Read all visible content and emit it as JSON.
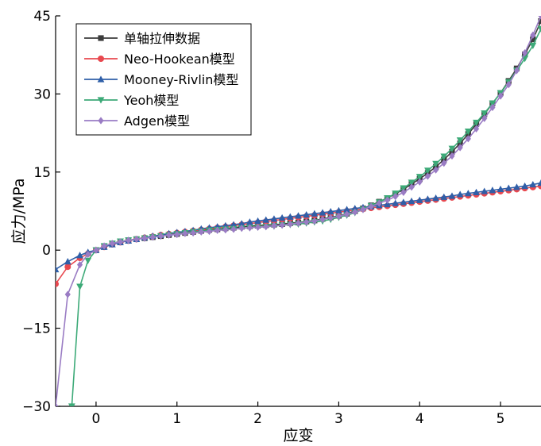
{
  "chart_data": {
    "type": "line",
    "xlabel": "应变",
    "ylabel": "应力/MPa",
    "xlim": [
      -0.5,
      5.5
    ],
    "ylim": [
      -30,
      45
    ],
    "xticks": [
      0,
      1,
      2,
      3,
      4,
      5
    ],
    "yticks": [
      -30,
      -15,
      0,
      15,
      30,
      45
    ],
    "ytick_labels": [
      "−30",
      "−15",
      "0",
      "15",
      "30",
      "45"
    ],
    "grid": false,
    "legend_position": "top-left",
    "series": [
      {
        "name": "单轴拉伸数据",
        "color": "#3c3c3c",
        "marker": "square",
        "x": [
          0,
          0.1,
          0.2,
          0.3,
          0.4,
          0.5,
          0.6,
          0.7,
          0.8,
          0.9,
          1.0,
          1.1,
          1.2,
          1.3,
          1.4,
          1.5,
          1.6,
          1.7,
          1.8,
          1.9,
          2.0,
          2.1,
          2.2,
          2.3,
          2.4,
          2.5,
          2.6,
          2.7,
          2.8,
          2.9,
          3.0,
          3.1,
          3.2,
          3.3,
          3.4,
          3.5,
          3.6,
          3.7,
          3.8,
          3.9,
          4.0,
          4.1,
          4.2,
          4.3,
          4.4,
          4.5,
          4.6,
          4.7,
          4.8,
          4.9,
          5.0,
          5.1,
          5.2,
          5.3,
          5.4,
          5.5
        ],
        "y": [
          0,
          0.7,
          1.2,
          1.6,
          1.9,
          2.1,
          2.3,
          2.5,
          2.7,
          2.9,
          3.1,
          3.3,
          3.5,
          3.7,
          3.9,
          4.0,
          4.2,
          4.3,
          4.5,
          4.6,
          4.7,
          4.8,
          4.9,
          5.0,
          5.2,
          5.3,
          5.5,
          5.7,
          6.0,
          6.3,
          6.6,
          7.0,
          7.5,
          8.0,
          8.6,
          9.3,
          10.0,
          10.8,
          11.7,
          12.7,
          13.7,
          14.8,
          16.0,
          17.4,
          18.9,
          20.5,
          22.3,
          24.2,
          26.1,
          28.2,
          30.2,
          32.5,
          34.9,
          37.6,
          40.5,
          44.0
        ]
      },
      {
        "name": "Neo-Hookean模型",
        "color": "#e8484f",
        "marker": "circle",
        "x": [
          -0.5,
          -0.35,
          -0.2,
          -0.1,
          0,
          0.1,
          0.2,
          0.3,
          0.4,
          0.5,
          0.6,
          0.7,
          0.8,
          0.9,
          1.0,
          1.1,
          1.2,
          1.3,
          1.4,
          1.5,
          1.6,
          1.7,
          1.8,
          1.9,
          2.0,
          2.1,
          2.2,
          2.3,
          2.4,
          2.5,
          2.6,
          2.7,
          2.8,
          2.9,
          3.0,
          3.1,
          3.2,
          3.3,
          3.4,
          3.5,
          3.6,
          3.7,
          3.8,
          3.9,
          4.0,
          4.1,
          4.2,
          4.3,
          4.4,
          4.5,
          4.6,
          4.7,
          4.8,
          4.9,
          5.0,
          5.1,
          5.2,
          5.3,
          5.4,
          5.5
        ],
        "y": [
          -6.5,
          -3.2,
          -1.5,
          -0.7,
          0,
          0.6,
          1.1,
          1.5,
          1.8,
          2.1,
          2.4,
          2.6,
          2.9,
          3.1,
          3.3,
          3.5,
          3.7,
          3.9,
          4.1,
          4.3,
          4.5,
          4.7,
          4.9,
          5.1,
          5.3,
          5.5,
          5.7,
          5.9,
          6.1,
          6.3,
          6.5,
          6.7,
          6.9,
          7.1,
          7.3,
          7.5,
          7.7,
          7.9,
          8.1,
          8.3,
          8.5,
          8.7,
          8.9,
          9.1,
          9.3,
          9.5,
          9.7,
          9.9,
          10.1,
          10.3,
          10.5,
          10.7,
          10.9,
          11.1,
          11.3,
          11.5,
          11.7,
          11.9,
          12.1,
          12.3
        ]
      },
      {
        "name": "Mooney-Rivlin模型",
        "color": "#2f5fa8",
        "marker": "triangle-up",
        "x": [
          -0.5,
          -0.35,
          -0.2,
          -0.1,
          0,
          0.1,
          0.2,
          0.3,
          0.4,
          0.5,
          0.6,
          0.7,
          0.8,
          0.9,
          1.0,
          1.1,
          1.2,
          1.3,
          1.4,
          1.5,
          1.6,
          1.7,
          1.8,
          1.9,
          2.0,
          2.1,
          2.2,
          2.3,
          2.4,
          2.5,
          2.6,
          2.7,
          2.8,
          2.9,
          3.0,
          3.1,
          3.2,
          3.3,
          3.4,
          3.5,
          3.6,
          3.7,
          3.8,
          3.9,
          4.0,
          4.1,
          4.2,
          4.3,
          4.4,
          4.5,
          4.6,
          4.7,
          4.8,
          4.9,
          5.0,
          5.1,
          5.2,
          5.3,
          5.4,
          5.5
        ],
        "y": [
          -3.7,
          -2.2,
          -1.0,
          -0.4,
          0,
          0.6,
          1.1,
          1.5,
          1.8,
          2.1,
          2.4,
          2.7,
          2.9,
          3.2,
          3.4,
          3.6,
          3.8,
          4.1,
          4.3,
          4.5,
          4.7,
          4.9,
          5.1,
          5.4,
          5.6,
          5.8,
          6.0,
          6.2,
          6.4,
          6.6,
          6.8,
          7.0,
          7.2,
          7.4,
          7.6,
          7.8,
          8.0,
          8.2,
          8.4,
          8.6,
          8.8,
          9.0,
          9.2,
          9.4,
          9.6,
          9.8,
          10.0,
          10.2,
          10.4,
          10.7,
          10.9,
          11.1,
          11.3,
          11.5,
          11.7,
          11.9,
          12.1,
          12.3,
          12.6,
          12.9
        ]
      },
      {
        "name": "Yeoh模型",
        "color": "#3daa78",
        "marker": "triangle-down",
        "x": [
          -0.3,
          -0.2,
          -0.1,
          0,
          0.1,
          0.2,
          0.3,
          0.4,
          0.5,
          0.6,
          0.7,
          0.8,
          0.9,
          1.0,
          1.1,
          1.2,
          1.3,
          1.4,
          1.5,
          1.6,
          1.7,
          1.8,
          1.9,
          2.0,
          2.1,
          2.2,
          2.3,
          2.4,
          2.5,
          2.6,
          2.7,
          2.8,
          2.9,
          3.0,
          3.1,
          3.2,
          3.3,
          3.4,
          3.5,
          3.6,
          3.7,
          3.8,
          3.9,
          4.0,
          4.1,
          4.2,
          4.3,
          4.4,
          4.5,
          4.6,
          4.7,
          4.8,
          4.9,
          5.0,
          5.1,
          5.2,
          5.3,
          5.4,
          5.5
        ],
        "y": [
          -30,
          -7.0,
          -2.0,
          0,
          0.8,
          1.3,
          1.7,
          1.9,
          2.1,
          2.3,
          2.5,
          2.7,
          2.9,
          3.1,
          3.3,
          3.5,
          3.6,
          3.8,
          3.9,
          4.0,
          4.1,
          4.2,
          4.3,
          4.4,
          4.5,
          4.6,
          4.8,
          4.9,
          5.0,
          5.2,
          5.4,
          5.6,
          5.9,
          6.3,
          6.7,
          7.2,
          7.8,
          8.5,
          9.2,
          10.0,
          10.9,
          11.9,
          13.0,
          14.1,
          15.3,
          16.6,
          18.0,
          19.5,
          21.1,
          22.8,
          24.5,
          26.3,
          28.2,
          30.2,
          32.3,
          34.5,
          36.8,
          39.3,
          42.5
        ]
      },
      {
        "name": "Adgen模型",
        "color": "#9a7cc4",
        "marker": "diamond",
        "x": [
          -0.5,
          -0.35,
          -0.2,
          -0.1,
          0,
          0.1,
          0.2,
          0.3,
          0.4,
          0.5,
          0.6,
          0.7,
          0.8,
          0.9,
          1.0,
          1.1,
          1.2,
          1.3,
          1.4,
          1.5,
          1.6,
          1.7,
          1.8,
          1.9,
          2.0,
          2.1,
          2.2,
          2.3,
          2.4,
          2.5,
          2.6,
          2.7,
          2.8,
          2.9,
          3.0,
          3.1,
          3.2,
          3.3,
          3.4,
          3.5,
          3.6,
          3.7,
          3.8,
          3.9,
          4.0,
          4.1,
          4.2,
          4.3,
          4.4,
          4.5,
          4.6,
          4.7,
          4.8,
          4.9,
          5.0,
          5.1,
          5.2,
          5.3,
          5.4,
          5.5
        ],
        "y": [
          -30,
          -8.5,
          -2.8,
          -0.8,
          0,
          0.8,
          1.3,
          1.6,
          1.9,
          2.1,
          2.3,
          2.5,
          2.7,
          2.9,
          3.0,
          3.2,
          3.3,
          3.5,
          3.6,
          3.8,
          3.9,
          4.0,
          4.2,
          4.3,
          4.4,
          4.5,
          4.7,
          4.8,
          5.0,
          5.2,
          5.4,
          5.6,
          5.9,
          6.2,
          6.5,
          6.9,
          7.3,
          7.8,
          8.4,
          9.0,
          9.6,
          10.3,
          11.1,
          12.1,
          13.1,
          14.2,
          15.4,
          16.7,
          18.1,
          19.7,
          21.4,
          23.3,
          25.3,
          27.4,
          29.6,
          31.8,
          34.5,
          37.9,
          41.3,
          45.0
        ]
      }
    ]
  }
}
